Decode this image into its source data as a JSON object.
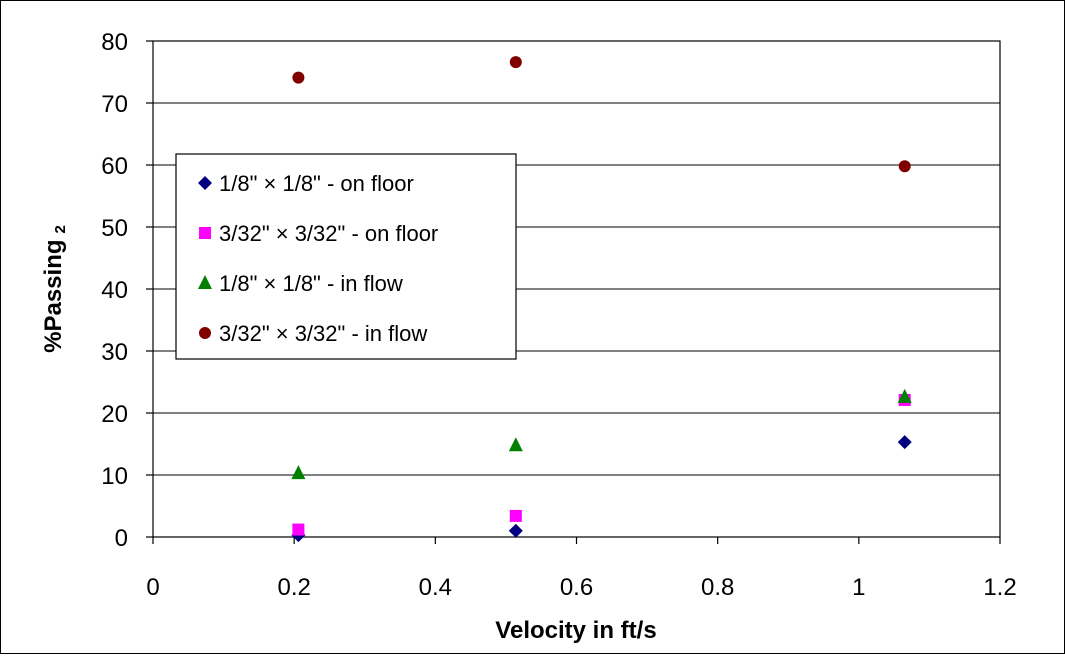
{
  "chart_data": {
    "type": "scatter",
    "title": "",
    "xlabel": "Velocity in ft/s",
    "ylabel": "%Passing",
    "ylabel_sub": "2",
    "xlim": [
      0,
      1.2
    ],
    "ylim": [
      0,
      80
    ],
    "xticks": [
      0,
      0.2,
      0.4,
      0.6,
      0.8,
      1,
      1.2
    ],
    "xtick_labels": [
      "0",
      "0.2",
      "0.4",
      "0.6",
      "0.8",
      "1",
      "1.2"
    ],
    "yticks": [
      0,
      10,
      20,
      30,
      40,
      50,
      60,
      70,
      80
    ],
    "ytick_labels": [
      "0",
      "10",
      "20",
      "30",
      "40",
      "50",
      "60",
      "70",
      "80"
    ],
    "grid": "horizontal",
    "legend_position": "left",
    "series": [
      {
        "name": "1/8\" × 1/8\" - on floor",
        "marker": "diamond",
        "color": "#000080",
        "x": [
          0.206,
          0.514,
          1.065
        ],
        "y": [
          0.3,
          1.0,
          15.3
        ]
      },
      {
        "name": "3/32\" × 3/32\" - on floor",
        "marker": "square",
        "color": "#ff00ff",
        "x": [
          0.206,
          0.514,
          1.065
        ],
        "y": [
          1.2,
          3.4,
          22.1
        ]
      },
      {
        "name": "1/8\" × 1/8\" - in flow",
        "marker": "triangle",
        "color": "#008000",
        "x": [
          0.206,
          0.514,
          1.065
        ],
        "y": [
          10.3,
          14.8,
          22.6
        ]
      },
      {
        "name": "3/32\" × 3/32\" - in flow",
        "marker": "circle",
        "color": "#800000",
        "x": [
          0.206,
          0.514,
          1.065
        ],
        "y": [
          74.1,
          76.6,
          59.8
        ]
      }
    ]
  }
}
